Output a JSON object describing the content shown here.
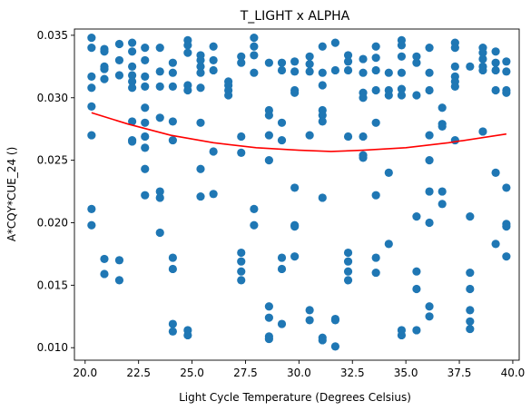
{
  "chart_data": {
    "type": "scatter",
    "title": "T_LIGHT x ALPHA",
    "xlabel": "Light Cycle Temperature (Degrees Celsius)",
    "ylabel": "A*CQY*CUE_24 ()",
    "xlim": [
      19.5,
      40.3
    ],
    "ylim": [
      0.009,
      0.0355
    ],
    "xticks": [
      20.0,
      22.5,
      25.0,
      27.5,
      30.0,
      32.5,
      35.0,
      37.5,
      40.0
    ],
    "xtick_labels": [
      "20.0",
      "22.5",
      "25.0",
      "27.5",
      "30.0",
      "32.5",
      "35.0",
      "37.5",
      "40.0"
    ],
    "yticks": [
      0.01,
      0.015,
      0.02,
      0.025,
      0.03,
      0.035
    ],
    "ytick_labels": [
      "0.010",
      "0.015",
      "0.020",
      "0.025",
      "0.030",
      "0.035"
    ],
    "grid": false,
    "point_color": "#1f77b4",
    "fit_color": "#ff0000",
    "fit_curve": {
      "x": [
        20.3,
        22.0,
        24.0,
        26.0,
        28.0,
        30.0,
        31.5,
        33.0,
        35.0,
        37.0,
        39.7
      ],
      "y": [
        0.0288,
        0.0279,
        0.027,
        0.0264,
        0.026,
        0.0258,
        0.0257,
        0.0258,
        0.026,
        0.0264,
        0.0271
      ]
    },
    "points": [
      [
        20.3,
        0.0348
      ],
      [
        20.3,
        0.034
      ],
      [
        20.3,
        0.0317
      ],
      [
        20.3,
        0.0308
      ],
      [
        20.3,
        0.0293
      ],
      [
        20.3,
        0.027
      ],
      [
        20.3,
        0.0211
      ],
      [
        20.3,
        0.0198
      ],
      [
        20.9,
        0.0339
      ],
      [
        20.9,
        0.0337
      ],
      [
        20.9,
        0.0325
      ],
      [
        20.9,
        0.0323
      ],
      [
        20.9,
        0.0315
      ],
      [
        20.9,
        0.0171
      ],
      [
        20.9,
        0.0159
      ],
      [
        21.6,
        0.0343
      ],
      [
        21.6,
        0.033
      ],
      [
        21.6,
        0.0318
      ],
      [
        21.6,
        0.017
      ],
      [
        21.6,
        0.0154
      ],
      [
        22.2,
        0.0344
      ],
      [
        22.2,
        0.0337
      ],
      [
        22.2,
        0.0325
      ],
      [
        22.2,
        0.0318
      ],
      [
        22.2,
        0.0313
      ],
      [
        22.2,
        0.0308
      ],
      [
        22.2,
        0.0281
      ],
      [
        22.2,
        0.0266
      ],
      [
        22.2,
        0.0265
      ],
      [
        22.8,
        0.034
      ],
      [
        22.8,
        0.033
      ],
      [
        22.8,
        0.0317
      ],
      [
        22.8,
        0.0309
      ],
      [
        22.8,
        0.0292
      ],
      [
        22.8,
        0.028
      ],
      [
        22.8,
        0.0269
      ],
      [
        22.8,
        0.026
      ],
      [
        22.8,
        0.0243
      ],
      [
        22.8,
        0.0222
      ],
      [
        23.5,
        0.034
      ],
      [
        23.5,
        0.0321
      ],
      [
        23.5,
        0.0309
      ],
      [
        23.5,
        0.0284
      ],
      [
        23.5,
        0.0225
      ],
      [
        23.5,
        0.022
      ],
      [
        23.5,
        0.0192
      ],
      [
        24.1,
        0.0328
      ],
      [
        24.1,
        0.032
      ],
      [
        24.1,
        0.0309
      ],
      [
        24.1,
        0.0281
      ],
      [
        24.1,
        0.0266
      ],
      [
        24.1,
        0.0172
      ],
      [
        24.1,
        0.0163
      ],
      [
        24.1,
        0.0119
      ],
      [
        24.1,
        0.0113
      ],
      [
        24.8,
        0.0346
      ],
      [
        24.8,
        0.0342
      ],
      [
        24.8,
        0.0336
      ],
      [
        24.8,
        0.031
      ],
      [
        24.8,
        0.0306
      ],
      [
        24.8,
        0.0114
      ],
      [
        24.8,
        0.011
      ],
      [
        25.4,
        0.0334
      ],
      [
        25.4,
        0.033
      ],
      [
        25.4,
        0.0325
      ],
      [
        25.4,
        0.032
      ],
      [
        25.4,
        0.0308
      ],
      [
        25.4,
        0.028
      ],
      [
        25.4,
        0.0243
      ],
      [
        25.4,
        0.0221
      ],
      [
        26.0,
        0.0341
      ],
      [
        26.0,
        0.033
      ],
      [
        26.0,
        0.0322
      ],
      [
        26.0,
        0.0257
      ],
      [
        26.0,
        0.0223
      ],
      [
        26.7,
        0.0313
      ],
      [
        26.7,
        0.031
      ],
      [
        26.7,
        0.0306
      ],
      [
        26.7,
        0.0302
      ],
      [
        27.3,
        0.0333
      ],
      [
        27.3,
        0.0328
      ],
      [
        27.3,
        0.0269
      ],
      [
        27.3,
        0.0256
      ],
      [
        27.3,
        0.0176
      ],
      [
        27.3,
        0.0169
      ],
      [
        27.3,
        0.0161
      ],
      [
        27.3,
        0.0154
      ],
      [
        27.9,
        0.0348
      ],
      [
        27.9,
        0.0341
      ],
      [
        27.9,
        0.0334
      ],
      [
        27.9,
        0.032
      ],
      [
        27.9,
        0.0211
      ],
      [
        27.9,
        0.0198
      ],
      [
        28.6,
        0.0328
      ],
      [
        28.6,
        0.029
      ],
      [
        28.6,
        0.0286
      ],
      [
        28.6,
        0.027
      ],
      [
        28.6,
        0.025
      ],
      [
        28.6,
        0.0133
      ],
      [
        28.6,
        0.0124
      ],
      [
        28.6,
        0.0109
      ],
      [
        28.6,
        0.0107
      ],
      [
        29.2,
        0.0328
      ],
      [
        29.2,
        0.0322
      ],
      [
        29.2,
        0.028
      ],
      [
        29.2,
        0.0266
      ],
      [
        29.2,
        0.0172
      ],
      [
        29.2,
        0.0163
      ],
      [
        29.2,
        0.0119
      ],
      [
        29.8,
        0.0329
      ],
      [
        29.8,
        0.0321
      ],
      [
        29.8,
        0.0306
      ],
      [
        29.8,
        0.0304
      ],
      [
        29.8,
        0.0228
      ],
      [
        29.8,
        0.0198
      ],
      [
        29.8,
        0.0197
      ],
      [
        29.8,
        0.0173
      ],
      [
        30.5,
        0.0333
      ],
      [
        30.5,
        0.0327
      ],
      [
        30.5,
        0.0321
      ],
      [
        30.5,
        0.027
      ],
      [
        30.5,
        0.013
      ],
      [
        30.5,
        0.0122
      ],
      [
        31.1,
        0.0341
      ],
      [
        31.1,
        0.032
      ],
      [
        31.1,
        0.031
      ],
      [
        31.1,
        0.029
      ],
      [
        31.1,
        0.0286
      ],
      [
        31.1,
        0.0281
      ],
      [
        31.1,
        0.022
      ],
      [
        31.1,
        0.0108
      ],
      [
        31.1,
        0.0106
      ],
      [
        31.7,
        0.0344
      ],
      [
        31.7,
        0.0322
      ],
      [
        31.7,
        0.0123
      ],
      [
        31.7,
        0.0122
      ],
      [
        31.7,
        0.0101
      ],
      [
        32.3,
        0.0334
      ],
      [
        32.3,
        0.0329
      ],
      [
        32.3,
        0.0322
      ],
      [
        32.3,
        0.0269
      ],
      [
        32.3,
        0.0176
      ],
      [
        32.3,
        0.0169
      ],
      [
        32.3,
        0.0161
      ],
      [
        32.3,
        0.0154
      ],
      [
        33.0,
        0.0331
      ],
      [
        33.0,
        0.032
      ],
      [
        33.0,
        0.0304
      ],
      [
        33.0,
        0.03
      ],
      [
        33.0,
        0.0269
      ],
      [
        33.0,
        0.0254
      ],
      [
        33.0,
        0.0252
      ],
      [
        33.6,
        0.0341
      ],
      [
        33.6,
        0.0332
      ],
      [
        33.6,
        0.0322
      ],
      [
        33.6,
        0.0306
      ],
      [
        33.6,
        0.028
      ],
      [
        33.6,
        0.0222
      ],
      [
        33.6,
        0.0172
      ],
      [
        33.6,
        0.016
      ],
      [
        34.2,
        0.032
      ],
      [
        34.2,
        0.0306
      ],
      [
        34.2,
        0.0302
      ],
      [
        34.2,
        0.024
      ],
      [
        34.2,
        0.0183
      ],
      [
        34.8,
        0.0346
      ],
      [
        34.8,
        0.0342
      ],
      [
        34.8,
        0.0333
      ],
      [
        34.8,
        0.032
      ],
      [
        34.8,
        0.0307
      ],
      [
        34.8,
        0.0302
      ],
      [
        34.8,
        0.0114
      ],
      [
        34.8,
        0.011
      ],
      [
        35.5,
        0.0333
      ],
      [
        35.5,
        0.0328
      ],
      [
        35.5,
        0.0302
      ],
      [
        35.5,
        0.0205
      ],
      [
        35.5,
        0.0161
      ],
      [
        35.5,
        0.0147
      ],
      [
        35.5,
        0.0114
      ],
      [
        36.1,
        0.034
      ],
      [
        36.1,
        0.032
      ],
      [
        36.1,
        0.0306
      ],
      [
        36.1,
        0.027
      ],
      [
        36.1,
        0.025
      ],
      [
        36.1,
        0.0225
      ],
      [
        36.1,
        0.02
      ],
      [
        36.1,
        0.0133
      ],
      [
        36.1,
        0.0125
      ],
      [
        36.7,
        0.0292
      ],
      [
        36.7,
        0.0279
      ],
      [
        36.7,
        0.0277
      ],
      [
        36.7,
        0.0225
      ],
      [
        36.7,
        0.0215
      ],
      [
        37.3,
        0.0344
      ],
      [
        37.3,
        0.034
      ],
      [
        37.3,
        0.0325
      ],
      [
        37.3,
        0.0317
      ],
      [
        37.3,
        0.0313
      ],
      [
        37.3,
        0.0309
      ],
      [
        37.3,
        0.0266
      ],
      [
        38.0,
        0.0325
      ],
      [
        38.0,
        0.0205
      ],
      [
        38.0,
        0.016
      ],
      [
        38.0,
        0.0147
      ],
      [
        38.0,
        0.013
      ],
      [
        38.0,
        0.0121
      ],
      [
        38.0,
        0.0115
      ],
      [
        38.6,
        0.034
      ],
      [
        38.6,
        0.0336
      ],
      [
        38.6,
        0.0331
      ],
      [
        38.6,
        0.0325
      ],
      [
        38.6,
        0.0322
      ],
      [
        38.6,
        0.0273
      ],
      [
        39.2,
        0.0337
      ],
      [
        39.2,
        0.0328
      ],
      [
        39.2,
        0.0322
      ],
      [
        39.2,
        0.0306
      ],
      [
        39.2,
        0.024
      ],
      [
        39.2,
        0.0183
      ],
      [
        39.7,
        0.0329
      ],
      [
        39.7,
        0.0321
      ],
      [
        39.7,
        0.0306
      ],
      [
        39.7,
        0.0304
      ],
      [
        39.7,
        0.0228
      ],
      [
        39.7,
        0.0199
      ],
      [
        39.7,
        0.0197
      ],
      [
        39.7,
        0.0173
      ]
    ]
  }
}
